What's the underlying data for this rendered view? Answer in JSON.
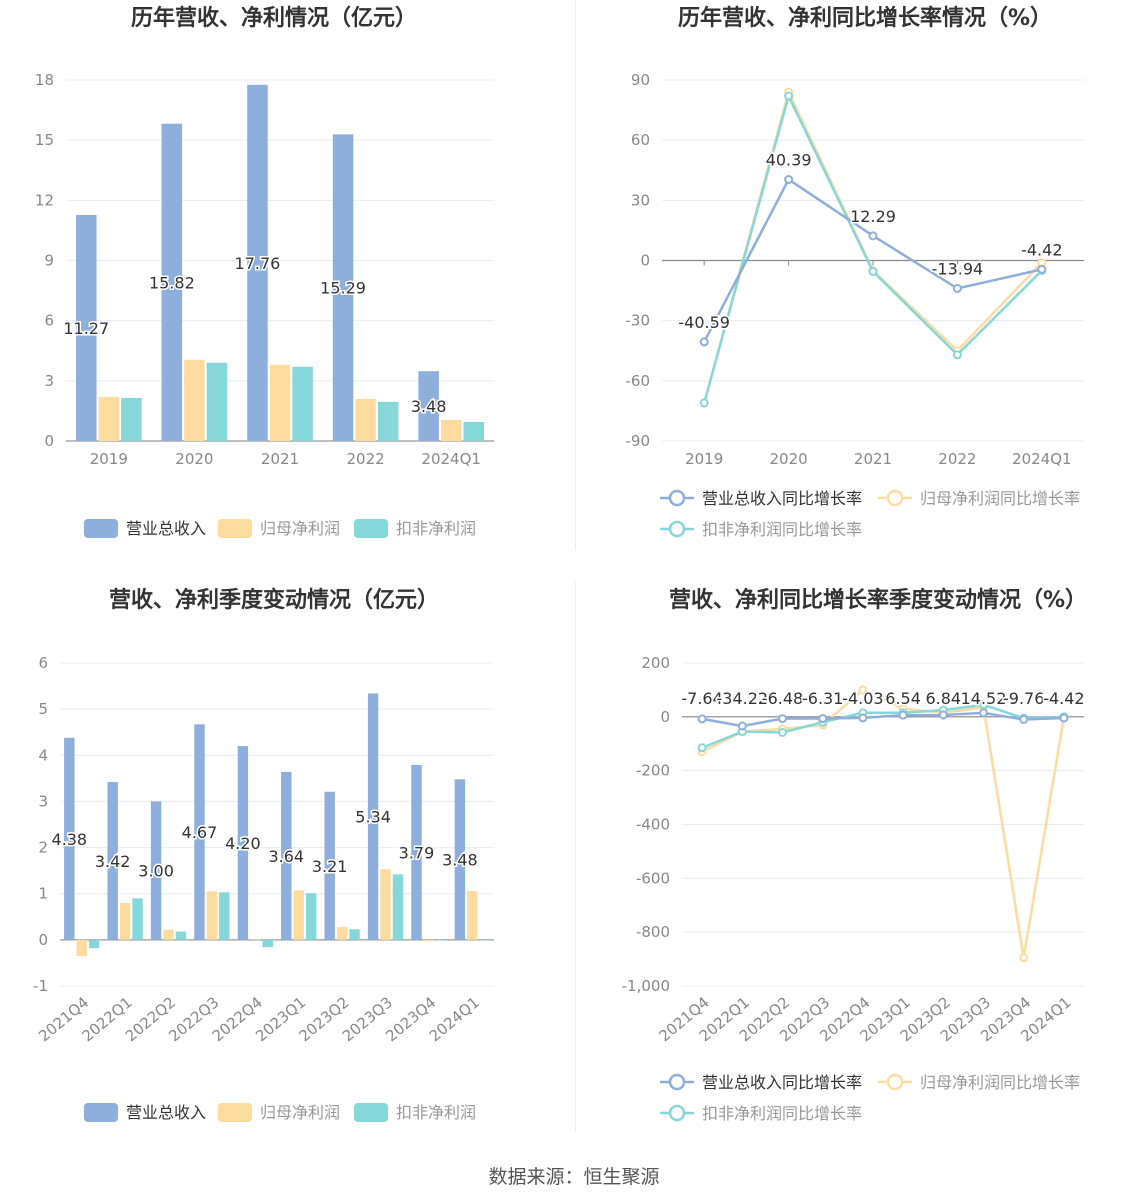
{
  "colors": {
    "revenue": "#8eaedb",
    "net_profit": "#fedb9f",
    "deducted_profit": "#85d7d9",
    "grid": "#e8ecf5",
    "axis_text": "#888888",
    "title_text": "#333333",
    "label_text": "#333333"
  },
  "source": "数据来源：恒生聚源",
  "chart_data": [
    {
      "type": "bar",
      "title": "历年营收、净利情况（亿元）",
      "categories": [
        "2019",
        "2020",
        "2021",
        "2022",
        "2024Q1"
      ],
      "ylim": [
        0,
        18
      ],
      "yticks": [
        0,
        3,
        6,
        9,
        12,
        15,
        18
      ],
      "ytick_labels": [
        "0",
        "3",
        "6",
        "9",
        "12",
        "15",
        "18"
      ],
      "grid": true,
      "legend_position": "bottom",
      "series": [
        {
          "name": "营业总收入",
          "values": [
            11.27,
            15.82,
            17.76,
            15.29,
            3.48
          ],
          "labels": [
            "11.27",
            "15.82",
            "17.76",
            "15.29",
            "3.48"
          ]
        },
        {
          "name": "归母净利润",
          "values": [
            2.2,
            4.05,
            3.8,
            2.1,
            1.05
          ]
        },
        {
          "name": "扣非净利润",
          "values": [
            2.15,
            3.9,
            3.7,
            1.95,
            0.95
          ]
        }
      ]
    },
    {
      "type": "line",
      "title": "历年营收、净利同比增长率情况（%）",
      "categories": [
        "2019",
        "2020",
        "2021",
        "2022",
        "2024Q1"
      ],
      "ylim": [
        -90,
        90
      ],
      "yticks": [
        -90,
        -60,
        -30,
        0,
        30,
        60,
        90
      ],
      "ytick_labels": [
        "-90",
        "-60",
        "-30",
        "0",
        "30",
        "60",
        "90"
      ],
      "grid": true,
      "legend_position": "bottom",
      "series": [
        {
          "name": "营业总收入同比增长率",
          "values": [
            -40.59,
            40.39,
            12.29,
            -13.94,
            -4.42
          ],
          "labels": [
            "-40.59",
            "40.39",
            "12.29",
            "-13.94",
            "-4.42"
          ]
        },
        {
          "name": "归母净利润同比增长率",
          "values": [
            -71,
            84,
            -5,
            -45,
            -1
          ]
        },
        {
          "name": "扣非净利润同比增长率",
          "values": [
            -71,
            82,
            -5.5,
            -47,
            -5
          ]
        }
      ]
    },
    {
      "type": "bar",
      "title": "营收、净利季度变动情况（亿元）",
      "categories": [
        "2021Q4",
        "2022Q1",
        "2022Q2",
        "2022Q3",
        "2022Q4",
        "2023Q1",
        "2023Q2",
        "2023Q3",
        "2023Q4",
        "2024Q1"
      ],
      "ylim": [
        -1,
        6
      ],
      "yticks": [
        -1,
        0,
        1,
        2,
        3,
        4,
        5,
        6
      ],
      "ytick_labels": [
        "-1",
        "0",
        "1",
        "2",
        "3",
        "4",
        "5",
        "6"
      ],
      "grid": true,
      "legend_position": "bottom",
      "series": [
        {
          "name": "营业总收入",
          "values": [
            4.38,
            3.42,
            3.0,
            4.67,
            4.2,
            3.64,
            3.21,
            5.34,
            3.79,
            3.48
          ],
          "labels": [
            "4.38",
            "3.42",
            "3.00",
            "4.67",
            "4.20",
            "3.64",
            "3.21",
            "5.34",
            "3.79",
            "3.48"
          ]
        },
        {
          "name": "归母净利润",
          "values": [
            -0.35,
            0.8,
            0.22,
            1.05,
            0.01,
            1.07,
            0.28,
            1.53,
            -0.03,
            1.06
          ]
        },
        {
          "name": "扣非净利润",
          "values": [
            -0.18,
            0.9,
            0.18,
            1.03,
            -0.16,
            1.01,
            0.23,
            1.42,
            0.0,
            0.0
          ]
        }
      ]
    },
    {
      "type": "line",
      "title": "营收、净利同比增长率季度变动情况（%）",
      "categories": [
        "2021Q4",
        "2022Q1",
        "2022Q2",
        "2022Q3",
        "2022Q4",
        "2023Q1",
        "2023Q2",
        "2023Q3",
        "2023Q4",
        "2024Q1"
      ],
      "ylim": [
        -1000,
        200
      ],
      "yticks": [
        -1000,
        -800,
        -600,
        -400,
        -200,
        0,
        200
      ],
      "ytick_labels": [
        "-1,000",
        "-800",
        "-600",
        "-400",
        "-200",
        "0",
        "200"
      ],
      "grid": true,
      "legend_position": "bottom",
      "series": [
        {
          "name": "营业总收入同比增长率",
          "values": [
            -7.64,
            -34.22,
            -6.48,
            -6.31,
            -4.03,
            6.54,
            6.84,
            14.52,
            -9.76,
            -4.42
          ],
          "labels": [
            "-7.64",
            "-34.22",
            "-6.48",
            "-6.31",
            "-4.03",
            "6.54",
            "6.84",
            "14.52",
            "-9.76",
            "-4.42"
          ]
        },
        {
          "name": "归母净利润同比增长率",
          "values": [
            -130,
            -55,
            -45,
            -30,
            100,
            30,
            15,
            35,
            -895,
            0
          ]
        },
        {
          "name": "扣非净利润同比增长率",
          "values": [
            -115,
            -55,
            -58,
            -20,
            15,
            15,
            25,
            45,
            -5,
            0
          ]
        }
      ]
    }
  ]
}
